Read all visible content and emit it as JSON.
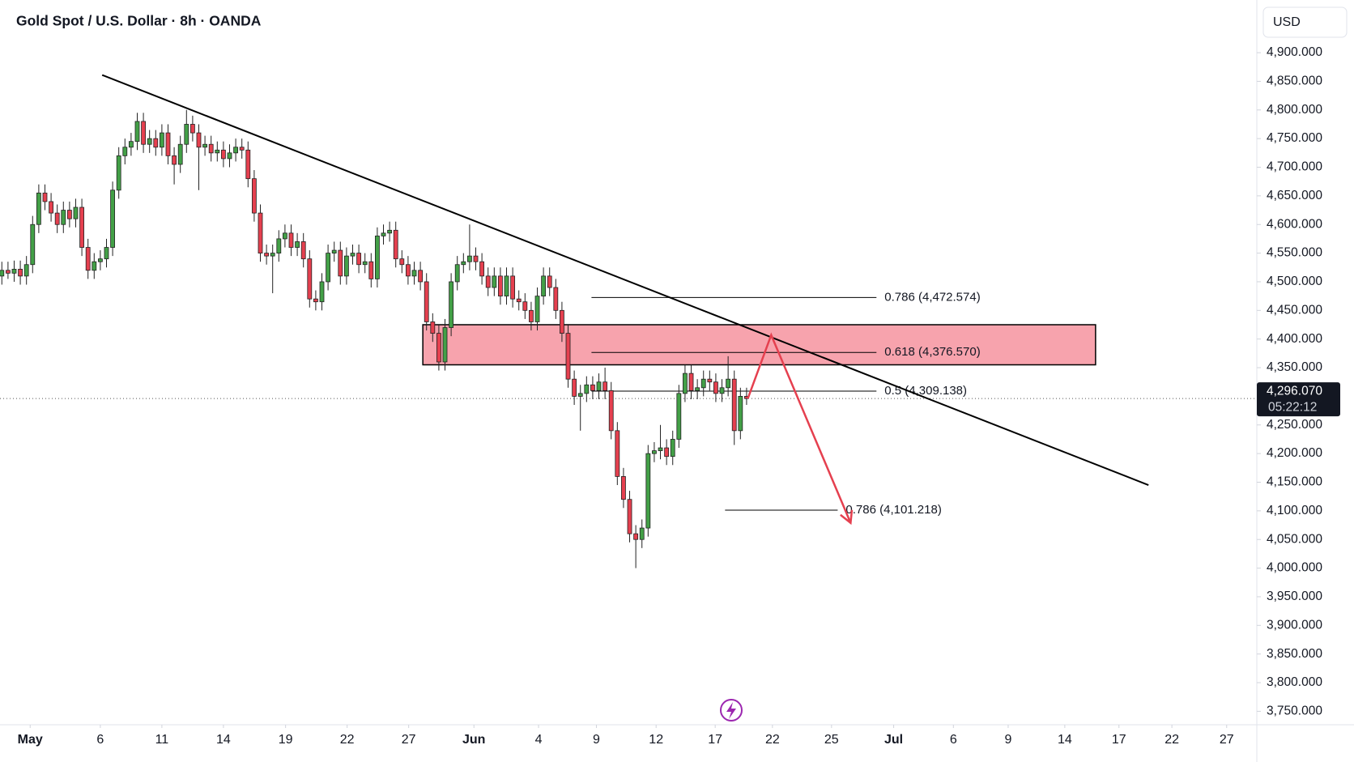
{
  "header": {
    "title": "Gold Spot / U.S. Dollar · 8h · OANDA",
    "currency": "USD"
  },
  "chart_data": {
    "type": "candlestick",
    "up_color": "#43a047",
    "down_color": "#e5404f",
    "open": [
      4510,
      4520,
      4515,
      4522,
      4510,
      4530,
      4600,
      4655,
      4640,
      4620,
      4600,
      4625,
      4610,
      4630,
      4560,
      4520,
      4535,
      4540,
      4560,
      4660,
      4720,
      4735,
      4745,
      4780,
      4740,
      4750,
      4735,
      4760,
      4720,
      4705,
      4740,
      4775,
      4760,
      4735,
      4740,
      4725,
      4730,
      4715,
      4725,
      4735,
      4730,
      4680,
      4620,
      4550,
      4545,
      4550,
      4575,
      4585,
      4560,
      4570,
      4540,
      4470,
      4465,
      4500,
      4550,
      4555,
      4510,
      4545,
      4550,
      4530,
      4535,
      4505,
      4580,
      4585,
      4590,
      4540,
      4530,
      4510,
      4520,
      4500,
      4430,
      4410,
      4360,
      4420,
      4500,
      4530,
      4535,
      4545,
      4535,
      4510,
      4490,
      4510,
      4475,
      4510,
      4470,
      4465,
      4450,
      4430,
      4475,
      4510,
      4490,
      4450,
      4410,
      4330,
      4300,
      4305,
      4320,
      4310,
      4325,
      4310,
      4240,
      4160,
      4120,
      4060,
      4050,
      4070,
      4200,
      4205,
      4210,
      4195,
      4225,
      4305,
      4340,
      4310,
      4315,
      4330,
      4325,
      4305,
      4315,
      4330,
      4240,
      4300
    ],
    "high": [
      4535,
      4535,
      4537,
      4537,
      4545,
      4615,
      4670,
      4670,
      4655,
      4635,
      4640,
      4640,
      4645,
      4645,
      4575,
      4550,
      4555,
      4575,
      4675,
      4735,
      4750,
      4760,
      4795,
      4795,
      4765,
      4765,
      4775,
      4775,
      4735,
      4755,
      4800,
      4790,
      4775,
      4755,
      4755,
      4745,
      4745,
      4740,
      4750,
      4750,
      4745,
      4695,
      4635,
      4565,
      4565,
      4590,
      4600,
      4600,
      4585,
      4585,
      4555,
      4485,
      4515,
      4565,
      4570,
      4570,
      4560,
      4565,
      4565,
      4550,
      4550,
      4595,
      4600,
      4605,
      4605,
      4555,
      4545,
      4535,
      4535,
      4515,
      4445,
      4425,
      4435,
      4515,
      4545,
      4550,
      4600,
      4560,
      4550,
      4525,
      4525,
      4525,
      4525,
      4525,
      4485,
      4480,
      4465,
      4490,
      4525,
      4525,
      4505,
      4465,
      4425,
      4345,
      4320,
      4335,
      4335,
      4340,
      4350,
      4325,
      4255,
      4175,
      4135,
      4075,
      4085,
      4215,
      4220,
      4250,
      4225,
      4240,
      4320,
      4355,
      4355,
      4330,
      4345,
      4345,
      4340,
      4330,
      4370,
      4345,
      4315,
      4315
    ],
    "low": [
      4495,
      4505,
      4500,
      4495,
      4495,
      4515,
      4585,
      4625,
      4605,
      4585,
      4585,
      4595,
      4595,
      4545,
      4505,
      4505,
      4520,
      4525,
      4545,
      4645,
      4705,
      4720,
      4730,
      4725,
      4725,
      4720,
      4720,
      4705,
      4670,
      4690,
      4725,
      4745,
      4660,
      4720,
      4710,
      4710,
      4700,
      4700,
      4710,
      4715,
      4665,
      4605,
      4535,
      4530,
      4480,
      4535,
      4560,
      4545,
      4545,
      4525,
      4455,
      4450,
      4450,
      4485,
      4535,
      4495,
      4495,
      4530,
      4515,
      4515,
      4490,
      4490,
      4565,
      4570,
      4525,
      4515,
      4495,
      4495,
      4485,
      4415,
      4395,
      4345,
      4345,
      4405,
      4485,
      4515,
      4520,
      4520,
      4495,
      4475,
      4475,
      4460,
      4460,
      4455,
      4450,
      4435,
      4415,
      4415,
      4460,
      4475,
      4435,
      4395,
      4315,
      4285,
      4240,
      4290,
      4295,
      4295,
      4295,
      4225,
      4145,
      4105,
      4045,
      4000,
      4035,
      4055,
      4185,
      4190,
      4180,
      4180,
      4210,
      4290,
      4295,
      4295,
      4300,
      4310,
      4290,
      4290,
      4300,
      4215,
      4225,
      4285
    ],
    "close": [
      4520,
      4515,
      4522,
      4510,
      4530,
      4600,
      4655,
      4640,
      4620,
      4600,
      4625,
      4610,
      4630,
      4560,
      4520,
      4535,
      4540,
      4560,
      4660,
      4720,
      4735,
      4745,
      4780,
      4740,
      4750,
      4735,
      4760,
      4720,
      4705,
      4740,
      4775,
      4760,
      4735,
      4740,
      4725,
      4730,
      4715,
      4725,
      4735,
      4730,
      4680,
      4620,
      4550,
      4545,
      4550,
      4575,
      4585,
      4560,
      4570,
      4540,
      4470,
      4465,
      4500,
      4550,
      4555,
      4510,
      4545,
      4550,
      4530,
      4535,
      4505,
      4580,
      4585,
      4590,
      4540,
      4530,
      4510,
      4520,
      4500,
      4430,
      4410,
      4360,
      4420,
      4500,
      4530,
      4535,
      4545,
      4535,
      4510,
      4490,
      4510,
      4475,
      4510,
      4470,
      4465,
      4450,
      4430,
      4475,
      4510,
      4490,
      4450,
      4410,
      4330,
      4300,
      4305,
      4320,
      4310,
      4325,
      4310,
      4240,
      4160,
      4120,
      4060,
      4050,
      4070,
      4200,
      4205,
      4210,
      4195,
      4225,
      4305,
      4340,
      4310,
      4315,
      4330,
      4325,
      4305,
      4315,
      4330,
      4240,
      4300,
      4296.07
    ],
    "xlim": [
      -0.3,
      203.9
    ],
    "xticks": [
      {
        "value": 4.6,
        "label": "May"
      },
      {
        "value": 16.0,
        "label": "6"
      },
      {
        "value": 26.0,
        "label": "11"
      },
      {
        "value": 36.0,
        "label": "14"
      },
      {
        "value": 46.1,
        "label": "19"
      },
      {
        "value": 56.1,
        "label": "22"
      },
      {
        "value": 66.1,
        "label": "27"
      },
      {
        "value": 76.7,
        "label": "Jun"
      },
      {
        "value": 87.2,
        "label": "4"
      },
      {
        "value": 96.6,
        "label": "9"
      },
      {
        "value": 106.3,
        "label": "12"
      },
      {
        "value": 115.9,
        "label": "17"
      },
      {
        "value": 125.2,
        "label": "22"
      },
      {
        "value": 134.8,
        "label": "25"
      },
      {
        "value": 144.9,
        "label": "Jul"
      },
      {
        "value": 154.6,
        "label": "6"
      },
      {
        "value": 163.5,
        "label": "9"
      },
      {
        "value": 172.7,
        "label": "14"
      },
      {
        "value": 181.5,
        "label": "17"
      },
      {
        "value": 190.1,
        "label": "22"
      },
      {
        "value": 199.0,
        "label": "27"
      }
    ],
    "ylim": [
      3726.5,
      4992
    ],
    "yticks": [
      {
        "value": 4900,
        "label": "4,900.000"
      },
      {
        "value": 4850,
        "label": "4,850.000"
      },
      {
        "value": 4800,
        "label": "4,800.000"
      },
      {
        "value": 4750,
        "label": "4,750.000"
      },
      {
        "value": 4700,
        "label": "4,700.000"
      },
      {
        "value": 4650,
        "label": "4,650.000"
      },
      {
        "value": 4600,
        "label": "4,600.000"
      },
      {
        "value": 4550,
        "label": "4,550.000"
      },
      {
        "value": 4500,
        "label": "4,500.000"
      },
      {
        "value": 4450,
        "label": "4,450.000"
      },
      {
        "value": 4400,
        "label": "4,400.000"
      },
      {
        "value": 4350,
        "label": "4,350.000"
      },
      {
        "value": 4300,
        "label": "4,300.000"
      },
      {
        "value": 4250,
        "label": "4,250.000"
      },
      {
        "value": 4200,
        "label": "4,200.000"
      },
      {
        "value": 4150,
        "label": "4,150.000"
      },
      {
        "value": 4100,
        "label": "4,100.000"
      },
      {
        "value": 4050,
        "label": "4,050.000"
      },
      {
        "value": 4000,
        "label": "4,000.000"
      },
      {
        "value": 3950,
        "label": "3,950.000"
      },
      {
        "value": 3900,
        "label": "3,900.000"
      },
      {
        "value": 3850,
        "label": "3,850.000"
      },
      {
        "value": 3800,
        "label": "3,800.000"
      },
      {
        "value": 3750,
        "label": "3,750.000"
      }
    ],
    "last_price": {
      "value": 4296.07,
      "label": "4,296.070"
    },
    "countdown": "05:22:12",
    "trendline": {
      "x": [
        16.3,
        186.3
      ],
      "y": [
        4861,
        4145
      ]
    },
    "zone": {
      "x": [
        68.4,
        177.7
      ],
      "y": [
        4355,
        4425
      ]
    },
    "fib_levels": [
      {
        "label": "0.786 (4,472.574)",
        "value": 4472.574,
        "x": [
          95.8,
          142.1
        ]
      },
      {
        "label": "0.618 (4,376.570)",
        "value": 4376.57,
        "x": [
          95.8,
          142.1
        ]
      },
      {
        "label": "0.5 (4,309.138)",
        "value": 4309.138,
        "x": [
          95.8,
          142.1
        ]
      },
      {
        "label": "0.786 (4,101.218)",
        "value": 4101.218,
        "x": [
          117.5,
          135.8
        ]
      }
    ],
    "projection": {
      "x": [
        121.2,
        125.0,
        137.9
      ],
      "y": [
        4296,
        4407,
        4079
      ]
    }
  }
}
